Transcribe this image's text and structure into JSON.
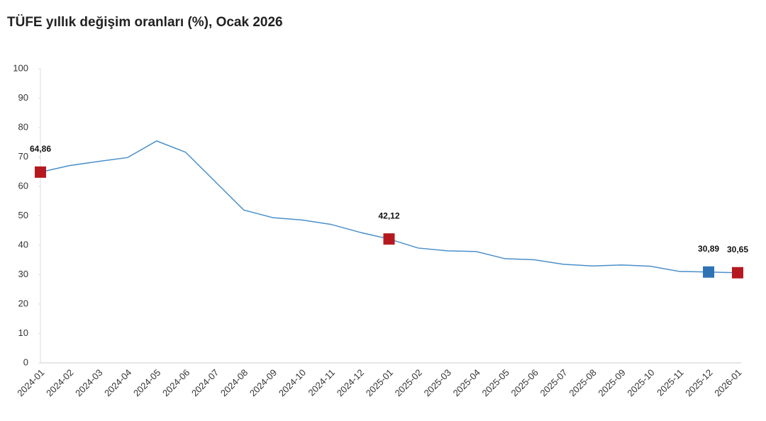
{
  "chart_data": {
    "type": "line",
    "title": "TÜFE yıllık değişim oranları (%), Ocak 2026",
    "categories": [
      "2024-01",
      "2024-02",
      "2024-03",
      "2024-04",
      "2024-05",
      "2024-06",
      "2024-07",
      "2024-08",
      "2024-09",
      "2024-10",
      "2024-11",
      "2024-12",
      "2025-01",
      "2025-02",
      "2025-03",
      "2025-04",
      "2025-05",
      "2025-06",
      "2025-07",
      "2025-08",
      "2025-09",
      "2025-10",
      "2025-11",
      "2025-12",
      "2026-01"
    ],
    "series": [
      {
        "color": "#4a8fc9",
        "values": [
          64.86,
          67.07,
          68.5,
          69.8,
          75.45,
          71.6,
          61.78,
          51.97,
          49.38,
          48.58,
          47.09,
          44.38,
          42.12,
          39.05,
          38.1,
          37.86,
          35.41,
          35.05,
          33.52,
          32.95,
          33.29,
          32.87,
          31.07,
          30.89,
          30.65
        ],
        "value_labels": [
          "64,86",
          null,
          null,
          null,
          null,
          null,
          null,
          null,
          null,
          null,
          null,
          null,
          "42,12",
          null,
          null,
          null,
          null,
          null,
          null,
          null,
          null,
          null,
          null,
          "30,89",
          "30,65"
        ],
        "marker_colors": [
          "#b5191f",
          null,
          null,
          null,
          null,
          null,
          null,
          null,
          null,
          null,
          null,
          null,
          "#b5191f",
          null,
          null,
          null,
          null,
          null,
          null,
          null,
          null,
          null,
          null,
          "#2e74b5",
          "#b5191f"
        ]
      }
    ],
    "ylim": [
      0,
      100
    ],
    "yticks": [
      0,
      10,
      20,
      30,
      40,
      50,
      60,
      70,
      80,
      90,
      100
    ],
    "grid": false
  }
}
